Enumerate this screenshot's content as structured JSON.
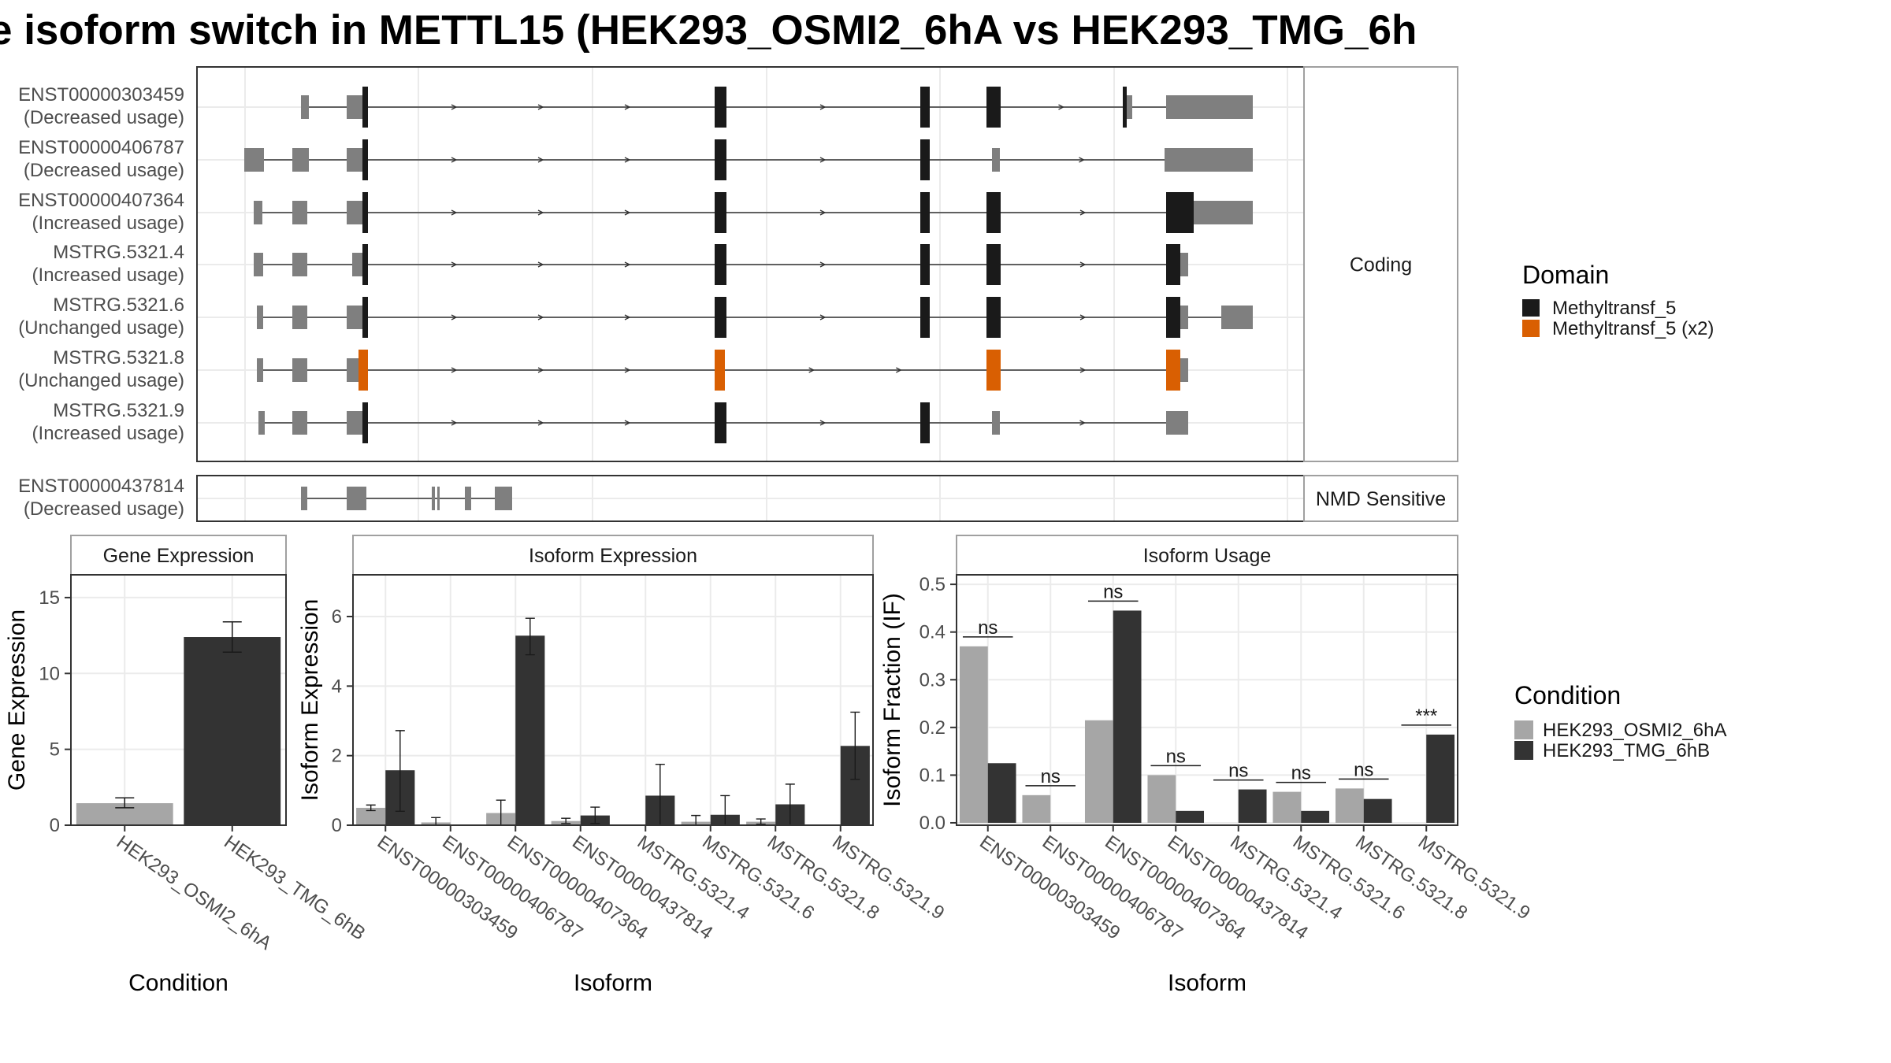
{
  "title": "e isoform switch in METTL15 (HEK293_OSMI2_6hA vs HEK293_TMG_6h",
  "colors": {
    "exon_utr": "#7f7f7f",
    "domain_methyltransf_5": "#1a1a1a",
    "domain_methyltransf_5_x2": "#d95f02",
    "cond_osmi2": "#a6a6a6",
    "cond_tmg": "#333333",
    "panel_border": "#333333",
    "strip_border": "#a0a0a0",
    "grid": "#ebebeb",
    "intron": "#333333"
  },
  "transcripts": {
    "facets": [
      {
        "label": "Coding",
        "rows": [
          {
            "id": "ENST00000303459",
            "usage": "(Decreased usage)"
          },
          {
            "id": "ENST00000406787",
            "usage": "(Decreased usage)"
          },
          {
            "id": "ENST00000407364",
            "usage": "(Increased usage)"
          },
          {
            "id": "MSTRG.5321.4",
            "usage": "(Increased usage)"
          },
          {
            "id": "MSTRG.5321.6",
            "usage": "(Unchanged usage)"
          },
          {
            "id": "MSTRG.5321.8",
            "usage": "(Unchanged usage)"
          },
          {
            "id": "MSTRG.5321.9",
            "usage": "(Increased usage)"
          }
        ]
      },
      {
        "label": "NMD Sensitive",
        "rows": [
          {
            "id": "ENST00000437814",
            "usage": "(Decreased usage)"
          }
        ]
      }
    ]
  },
  "legends": {
    "domain": {
      "title": "Domain",
      "items": [
        {
          "label": "Methyltransf_5",
          "color": "#1a1a1a"
        },
        {
          "label": "Methyltransf_5 (x2)",
          "color": "#d95f02"
        }
      ]
    },
    "condition": {
      "title": "Condition",
      "items": [
        {
          "label": "HEK293_OSMI2_6hA",
          "color": "#a6a6a6"
        },
        {
          "label": "HEK293_TMG_6hB",
          "color": "#333333"
        }
      ]
    }
  },
  "chart_data": [
    {
      "type": "bar",
      "title": "Gene Expression",
      "xlabel": "Condition",
      "ylabel": "Gene Expression",
      "ylim": [
        0,
        16.5
      ],
      "yticks": [
        0,
        5,
        10,
        15
      ],
      "categories": [
        "HEK293_OSMI2_6hA",
        "HEK293_TMG_6hB"
      ],
      "values": [
        1.45,
        12.4
      ],
      "errors": [
        [
          1.15,
          1.8
        ],
        [
          11.4,
          13.4
        ]
      ],
      "colors": [
        "#a6a6a6",
        "#333333"
      ]
    },
    {
      "type": "bar",
      "title": "Isoform Expression",
      "xlabel": "Isoform",
      "ylabel": "Isoform Expression",
      "ylim": [
        0,
        7.2
      ],
      "yticks": [
        0,
        2,
        4,
        6
      ],
      "categories": [
        "ENST00000303459",
        "ENST00000406787",
        "ENST00000407364",
        "ENST00000437814",
        "MSTRG.5321.4",
        "MSTRG.5321.6",
        "MSTRG.5321.8",
        "MSTRG.5321.9"
      ],
      "series": [
        {
          "name": "HEK293_OSMI2_6hA",
          "values": [
            0.5,
            0.08,
            0.35,
            0.12,
            0.0,
            0.1,
            0.1,
            0.0
          ],
          "errors": [
            [
              0.42,
              0.58
            ],
            [
              0.0,
              0.22
            ],
            [
              0.0,
              0.72
            ],
            [
              0.05,
              0.2
            ],
            [
              0.0,
              0.0
            ],
            [
              0.0,
              0.28
            ],
            [
              0.03,
              0.18
            ],
            [
              0.0,
              0.0
            ]
          ]
        },
        {
          "name": "HEK293_TMG_6hB",
          "values": [
            1.58,
            0.0,
            5.45,
            0.28,
            0.85,
            0.3,
            0.6,
            2.28
          ],
          "errors": [
            [
              0.4,
              2.72
            ],
            [
              0.0,
              0.0
            ],
            [
              4.9,
              5.95
            ],
            [
              0.05,
              0.52
            ],
            [
              0.0,
              1.75
            ],
            [
              0.0,
              0.85
            ],
            [
              0.0,
              1.18
            ],
            [
              1.32,
              3.25
            ]
          ]
        }
      ]
    },
    {
      "type": "bar",
      "title": "Isoform Usage",
      "xlabel": "Isoform",
      "ylabel": "Isoform Fraction (IF)",
      "ylim": [
        -0.005,
        0.52
      ],
      "yticks": [
        0.0,
        0.1,
        0.2,
        0.3,
        0.4,
        0.5
      ],
      "categories": [
        "ENST00000303459",
        "ENST00000406787",
        "ENST00000407364",
        "ENST00000437814",
        "MSTRG.5321.4",
        "MSTRG.5321.6",
        "MSTRG.5321.8",
        "MSTRG.5321.9"
      ],
      "series": [
        {
          "name": "HEK293_OSMI2_6hA",
          "values": [
            0.37,
            0.058,
            0.215,
            0.1,
            0.0,
            0.065,
            0.072,
            0.0
          ]
        },
        {
          "name": "HEK293_TMG_6hB",
          "values": [
            0.125,
            0.0,
            0.445,
            0.025,
            0.07,
            0.025,
            0.05,
            0.185
          ]
        }
      ],
      "significance": [
        "ns",
        "ns",
        "ns",
        "ns",
        "ns",
        "ns",
        "ns",
        "***"
      ]
    }
  ]
}
